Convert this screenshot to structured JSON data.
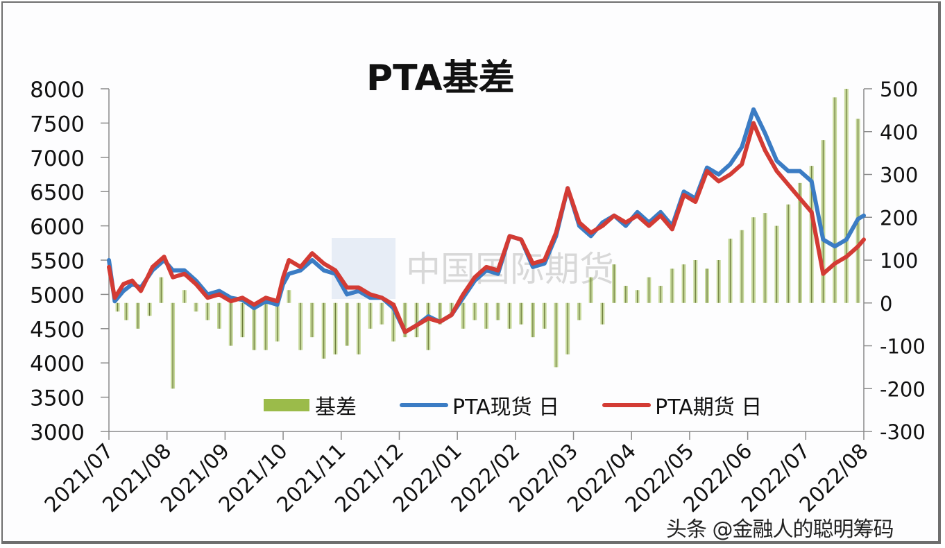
{
  "chart_data": {
    "type": "bar+line",
    "title": "PTA基差",
    "xlabel": "",
    "ylabel_left": "",
    "ylabel_right": "",
    "left_axis": {
      "min": 3000,
      "max": 8000,
      "step": 500,
      "ticks": [
        "8000",
        "7500",
        "7000",
        "6500",
        "6000",
        "5500",
        "5000",
        "4500",
        "4000",
        "3500",
        "3000"
      ]
    },
    "right_axis": {
      "min": -300,
      "max": 500,
      "step": 100,
      "ticks": [
        "500",
        "400",
        "300",
        "200",
        "100",
        "0",
        "-100",
        "-200",
        "-300"
      ]
    },
    "x_ticks": [
      "2021/07",
      "2021/08",
      "2021/09",
      "2021/10",
      "2021/11",
      "2021/12",
      "2022/01",
      "2022/02",
      "2022/03",
      "2022/04",
      "2022/05",
      "2022/06",
      "2022/07",
      "2022/08"
    ],
    "grid": false,
    "legend_position": "bottom-inside",
    "series": [
      {
        "name": "基差",
        "type": "bar",
        "axis": "right",
        "color": "#9bbb4a",
        "x_month_index": [
          0.15,
          0.3,
          0.5,
          0.7,
          0.9,
          1.1,
          1.3,
          1.5,
          1.7,
          1.9,
          2.1,
          2.3,
          2.5,
          2.7,
          2.9,
          3.1,
          3.3,
          3.5,
          3.7,
          3.9,
          4.1,
          4.3,
          4.5,
          4.7,
          4.9,
          5.1,
          5.3,
          5.5,
          5.7,
          5.9,
          6.1,
          6.3,
          6.5,
          6.7,
          6.9,
          7.1,
          7.3,
          7.5,
          7.7,
          7.9,
          8.1,
          8.3,
          8.5,
          8.7,
          8.9,
          9.1,
          9.3,
          9.5,
          9.7,
          9.9,
          10.1,
          10.3,
          10.5,
          10.7,
          10.9,
          11.1,
          11.3,
          11.5,
          11.7,
          11.9,
          12.1,
          12.3,
          12.5,
          12.7,
          12.9
        ],
        "values": [
          -20,
          -40,
          -60,
          -30,
          60,
          -200,
          30,
          -20,
          -40,
          -60,
          -100,
          -80,
          -110,
          -110,
          -90,
          30,
          -110,
          -80,
          -130,
          -120,
          -100,
          -120,
          -60,
          -50,
          -90,
          -80,
          -80,
          -110,
          -50,
          -30,
          -60,
          -40,
          -60,
          -40,
          -60,
          -50,
          -80,
          -60,
          -150,
          -120,
          -40,
          60,
          -50,
          90,
          40,
          30,
          60,
          40,
          80,
          90,
          100,
          80,
          100,
          150,
          170,
          200,
          210,
          180,
          230,
          280,
          320,
          380,
          480,
          500,
          430
        ]
      },
      {
        "name": "PTA现货 日",
        "type": "line",
        "axis": "left",
        "color": "#3b7cc4",
        "x_month_index": [
          0,
          0.1,
          0.25,
          0.4,
          0.55,
          0.75,
          0.95,
          1.1,
          1.3,
          1.5,
          1.7,
          1.9,
          2.1,
          2.3,
          2.5,
          2.7,
          2.9,
          3.0,
          3.1,
          3.3,
          3.5,
          3.7,
          3.9,
          4.1,
          4.3,
          4.5,
          4.7,
          4.9,
          5.1,
          5.3,
          5.5,
          5.7,
          5.9,
          6.1,
          6.3,
          6.5,
          6.7,
          6.9,
          7.1,
          7.3,
          7.5,
          7.7,
          7.9,
          8.1,
          8.3,
          8.5,
          8.7,
          8.9,
          9.1,
          9.3,
          9.5,
          9.7,
          9.9,
          10.1,
          10.3,
          10.5,
          10.7,
          10.9,
          11.1,
          11.3,
          11.5,
          11.7,
          11.9,
          12.1,
          12.3,
          12.5,
          12.7,
          12.9,
          13.0
        ],
        "values": [
          5500,
          4900,
          5050,
          5150,
          5100,
          5350,
          5500,
          5350,
          5350,
          5200,
          5000,
          5050,
          4950,
          4920,
          4800,
          4900,
          4850,
          5150,
          5300,
          5350,
          5500,
          5350,
          5300,
          5000,
          5050,
          4950,
          4950,
          4800,
          4450,
          4550,
          4680,
          4600,
          4700,
          4950,
          5200,
          5350,
          5300,
          5850,
          5800,
          5400,
          5450,
          5850,
          6550,
          6000,
          5850,
          6050,
          6150,
          6000,
          6200,
          6050,
          6200,
          6000,
          6500,
          6400,
          6850,
          6750,
          6900,
          7150,
          7700,
          7350,
          6950,
          6800,
          6800,
          6650,
          5800,
          5700,
          5800,
          6100,
          6150
        ]
      },
      {
        "name": "PTA期货 日",
        "type": "line",
        "axis": "left",
        "color": "#d33b34",
        "x_month_index": [
          0,
          0.1,
          0.25,
          0.4,
          0.55,
          0.75,
          0.95,
          1.1,
          1.3,
          1.5,
          1.7,
          1.9,
          2.1,
          2.3,
          2.5,
          2.7,
          2.9,
          3.0,
          3.1,
          3.3,
          3.5,
          3.7,
          3.9,
          4.1,
          4.3,
          4.5,
          4.7,
          4.9,
          5.1,
          5.3,
          5.5,
          5.7,
          5.9,
          6.1,
          6.3,
          6.5,
          6.7,
          6.9,
          7.1,
          7.3,
          7.5,
          7.7,
          7.9,
          8.1,
          8.3,
          8.5,
          8.7,
          8.9,
          9.1,
          9.3,
          9.5,
          9.7,
          9.9,
          10.1,
          10.3,
          10.5,
          10.7,
          10.9,
          11.1,
          11.3,
          11.5,
          11.7,
          11.9,
          12.1,
          12.3,
          12.5,
          12.7,
          12.9,
          13.0
        ],
        "values": [
          5400,
          4950,
          5150,
          5200,
          5050,
          5400,
          5550,
          5250,
          5300,
          5150,
          4950,
          5000,
          4900,
          4950,
          4850,
          4950,
          4900,
          5250,
          5500,
          5400,
          5600,
          5450,
          5350,
          5100,
          5100,
          5000,
          4950,
          4850,
          4450,
          4550,
          4650,
          4600,
          4700,
          5000,
          5250,
          5400,
          5350,
          5850,
          5800,
          5450,
          5500,
          5900,
          6550,
          6050,
          5900,
          6000,
          6150,
          6050,
          6150,
          6000,
          6150,
          5950,
          6450,
          6350,
          6800,
          6650,
          6750,
          6900,
          7500,
          7100,
          6800,
          6600,
          6400,
          6200,
          5300,
          5450,
          5550,
          5700,
          5800
        ]
      }
    ]
  },
  "legend": {
    "items": [
      {
        "label": "基差",
        "kind": "bar",
        "color": "#9bbb4a"
      },
      {
        "label": "PTA现货 日",
        "kind": "line",
        "color": "#3b7cc4"
      },
      {
        "label": "PTA期货 日",
        "kind": "line",
        "color": "#d33b34"
      }
    ]
  },
  "watermark": {
    "center": "中国国际期货",
    "bottom_right": "头条 @金融人的聪明筹码"
  }
}
